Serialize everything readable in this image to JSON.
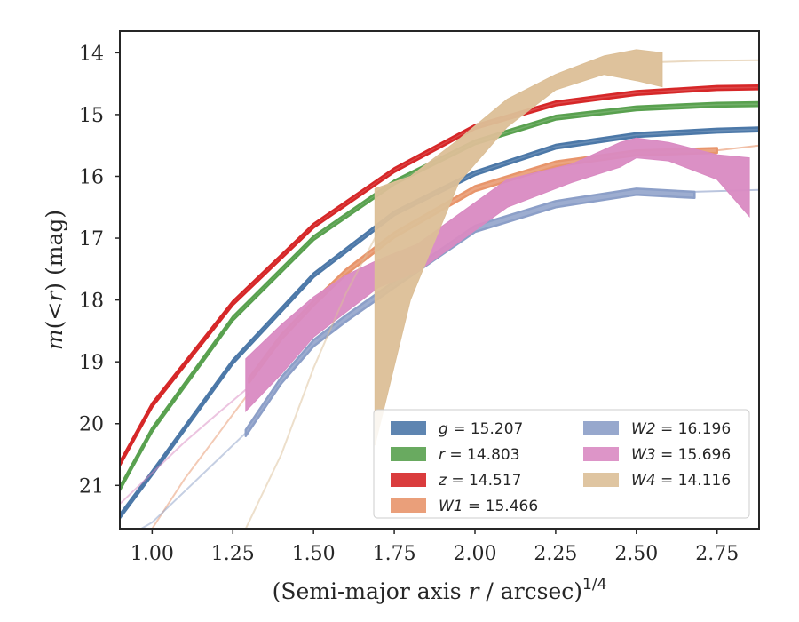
{
  "chart_data": {
    "type": "line",
    "title": "",
    "xlabel": "(Semi-major axis r / arcsec)^{1/4}",
    "xlabel_parts": {
      "a": "(Semi-major axis ",
      "b": "r",
      "c": " / arcsec)",
      "d": "1/4"
    },
    "ylabel": "m(<r) (mag)",
    "ylabel_parts": {
      "a": "m",
      "b": "(",
      "c": "<",
      "d": "r",
      "e": ")",
      "f": " (mag)"
    },
    "xlim": [
      0.9,
      2.88
    ],
    "ylim": [
      21.7,
      13.65
    ],
    "y_inverted": true,
    "grid": false,
    "legend_placement": "lower-right",
    "x_ticks": [
      1.0,
      1.25,
      1.5,
      1.75,
      2.0,
      2.25,
      2.5,
      2.75
    ],
    "x_tick_labels": [
      "1.00",
      "1.25",
      "1.50",
      "1.75",
      "2.00",
      "2.25",
      "2.50",
      "2.75"
    ],
    "y_ticks": [
      14,
      15,
      16,
      17,
      18,
      19,
      20,
      21
    ],
    "y_tick_labels": [
      "14",
      "15",
      "16",
      "17",
      "18",
      "19",
      "20",
      "21"
    ],
    "series": [
      {
        "name": "g = 15.207",
        "name_parts": {
          "sym": "g",
          "val": " = 15.207"
        },
        "color": "#4c78a8",
        "style": "band",
        "width": 0.03,
        "x": [
          0.9,
          1.0,
          1.25,
          1.5,
          1.75,
          2.0,
          2.25,
          2.5,
          2.75,
          2.88
        ],
        "y": [
          21.5,
          20.8,
          19.0,
          17.6,
          16.6,
          15.95,
          15.52,
          15.33,
          15.26,
          15.24
        ]
      },
      {
        "name": "r = 14.803",
        "name_parts": {
          "sym": "r",
          "val": " = 14.803"
        },
        "color": "#59a14f",
        "style": "band",
        "width": 0.03,
        "x": [
          0.9,
          1.0,
          1.25,
          1.5,
          1.75,
          2.0,
          2.25,
          2.5,
          2.75,
          2.88
        ],
        "y": [
          21.05,
          20.1,
          18.3,
          17.0,
          16.1,
          15.45,
          15.05,
          14.9,
          14.84,
          14.83
        ]
      },
      {
        "name": "z = 14.517",
        "name_parts": {
          "sym": "z",
          "val": " = 14.517"
        },
        "color": "#d62728",
        "style": "band",
        "width": 0.03,
        "x": [
          0.9,
          1.0,
          1.25,
          1.5,
          1.75,
          2.0,
          2.25,
          2.5,
          2.75,
          2.88
        ],
        "y": [
          20.65,
          19.7,
          18.05,
          16.8,
          15.9,
          15.2,
          14.82,
          14.65,
          14.57,
          14.56
        ]
      },
      {
        "name": "W1 = 15.466",
        "name_parts": {
          "sym": "W1",
          "val": " = 15.466"
        },
        "color": "#e8956b",
        "style": "curve-band",
        "width": 0.04,
        "faint_x": [
          1.0,
          1.1,
          1.2,
          1.3
        ],
        "faint_y": [
          21.7,
          20.9,
          20.2,
          19.5
        ],
        "x": [
          1.3,
          1.4,
          1.5,
          1.6,
          1.75,
          2.0,
          2.25,
          2.5,
          2.75
        ],
        "y": [
          19.3,
          18.6,
          18.05,
          17.55,
          16.95,
          16.2,
          15.8,
          15.62,
          15.58
        ],
        "tail_x": [
          2.75,
          2.88
        ],
        "tail_y": [
          15.58,
          15.5
        ]
      },
      {
        "name": "W2 = 16.196",
        "name_parts": {
          "sym": "W2",
          "val": " = 16.196"
        },
        "color": "#8c9fc8",
        "style": "curve-band",
        "width": 0.05,
        "faint_x": [
          0.9,
          1.0,
          1.1,
          1.2,
          1.29
        ],
        "faint_y": [
          21.9,
          21.6,
          21.1,
          20.6,
          20.15
        ],
        "x": [
          1.29,
          1.4,
          1.5,
          1.6,
          1.75,
          2.0,
          2.25,
          2.5,
          2.68
        ],
        "y": [
          20.15,
          19.3,
          18.7,
          18.3,
          17.75,
          16.85,
          16.45,
          16.25,
          16.3
        ],
        "tail_x": [
          2.68,
          2.88
        ],
        "tail_y": [
          16.25,
          16.22
        ]
      },
      {
        "name": "W3 = 15.696",
        "name_parts": {
          "sym": "W3",
          "val": " = 15.696"
        },
        "color": "#d98ac2",
        "style": "poly",
        "faint_x": [
          0.9,
          1.0,
          1.1,
          1.2,
          1.29
        ],
        "faint_y": [
          21.3,
          20.8,
          20.3,
          19.85,
          19.45
        ],
        "poly_x": [
          1.29,
          1.4,
          1.5,
          1.6,
          1.7,
          1.82,
          2.1,
          2.3,
          2.45,
          2.5,
          2.6,
          2.75,
          2.85,
          2.85,
          2.75,
          2.6,
          2.5,
          2.45,
          2.3,
          2.1,
          1.82,
          1.7,
          1.6,
          1.5,
          1.4,
          1.29
        ],
        "poly_y": [
          18.95,
          18.4,
          17.95,
          17.6,
          17.35,
          17.1,
          16.05,
          15.8,
          15.45,
          15.38,
          15.45,
          15.65,
          15.7,
          16.65,
          16.05,
          15.75,
          15.7,
          15.85,
          16.1,
          16.5,
          17.55,
          17.8,
          18.2,
          18.6,
          19.2,
          19.8
        ]
      },
      {
        "name": "W4 = 14.116",
        "name_parts": {
          "sym": "W4",
          "val": " = 14.116"
        },
        "color": "#dcbf97",
        "style": "poly",
        "faint_x": [
          1.29,
          1.4,
          1.5,
          1.6,
          1.7
        ],
        "faint_y": [
          21.7,
          20.5,
          19.1,
          17.9,
          16.9
        ],
        "poly_x": [
          1.69,
          1.8,
          1.95,
          2.1,
          2.25,
          2.4,
          2.5,
          2.58,
          2.58,
          2.5,
          2.4,
          2.25,
          2.1,
          1.95,
          1.8,
          1.69
        ],
        "poly_y": [
          16.2,
          16.0,
          15.4,
          14.75,
          14.35,
          14.05,
          13.95,
          14.0,
          14.55,
          14.45,
          14.35,
          14.6,
          15.2,
          16.1,
          18.0,
          20.35
        ],
        "tail_x": [
          2.58,
          2.7,
          2.88
        ],
        "tail_y": [
          14.15,
          14.13,
          14.12
        ]
      }
    ]
  }
}
